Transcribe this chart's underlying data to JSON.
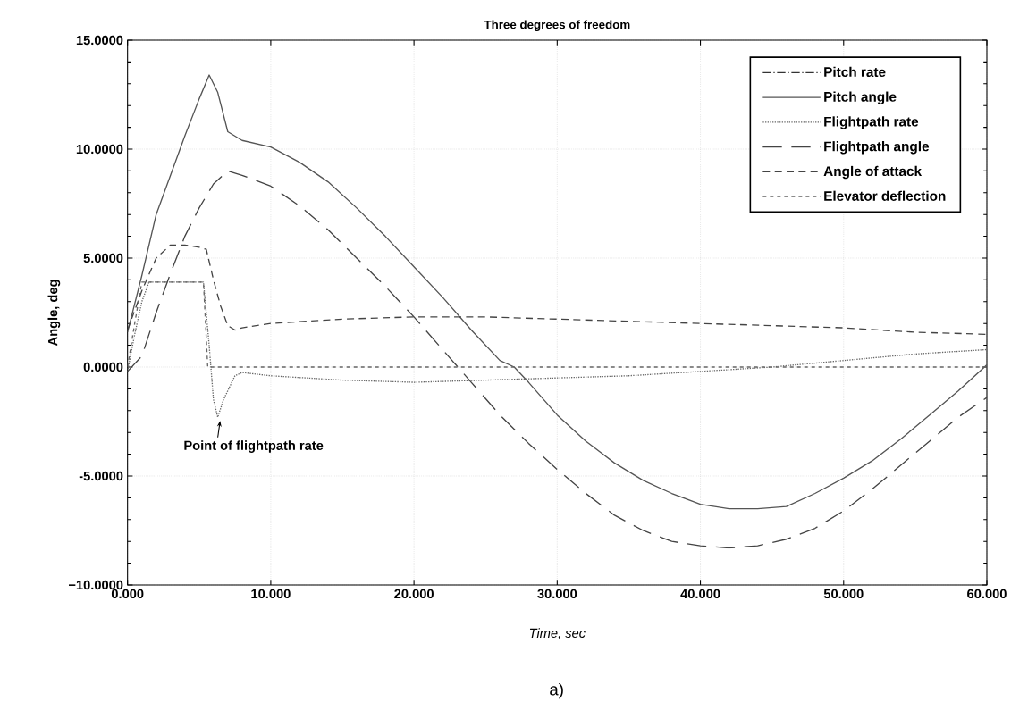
{
  "chart_data": {
    "type": "line",
    "title": "Three degrees of freedom",
    "xlabel": "Time, sec",
    "ylabel": "Angle, deg",
    "xlim": [
      0,
      60
    ],
    "ylim": [
      -10,
      15
    ],
    "xticks": [
      {
        "value": 0,
        "label": "0.000"
      },
      {
        "value": 10,
        "label": "10.000"
      },
      {
        "value": 20,
        "label": "20.000"
      },
      {
        "value": 30,
        "label": "30.000"
      },
      {
        "value": 40,
        "label": "40.000"
      },
      {
        "value": 50,
        "label": "50.000"
      },
      {
        "value": 60,
        "label": "60.000"
      }
    ],
    "yticks": [
      {
        "value": -10,
        "label": "−10.0000"
      },
      {
        "value": -5,
        "label": "-5.0000"
      },
      {
        "value": 0,
        "label": "0.0000"
      },
      {
        "value": 5,
        "label": "5.0000"
      },
      {
        "value": 10,
        "label": "10.0000"
      },
      {
        "value": 15,
        "label": "15.0000"
      }
    ],
    "grid": true,
    "legend": "top right",
    "series": [
      {
        "name": "Pitch rate",
        "color": "#333333",
        "line_style": "dashdot"
      },
      {
        "name": "Pitch angle",
        "color": "#555555",
        "line_style": "solid",
        "x": [
          0,
          1,
          2,
          3,
          4,
          5,
          5.7,
          6.3,
          7,
          8,
          10,
          12,
          14,
          16,
          18,
          20,
          22,
          24,
          26,
          27,
          28,
          30,
          32,
          34,
          36,
          38,
          40,
          42,
          44,
          46,
          48,
          50,
          52,
          54,
          56,
          58,
          60
        ],
        "values": [
          1.6,
          4.2,
          7,
          8.8,
          10.6,
          12.3,
          13.4,
          12.6,
          10.8,
          10.4,
          10.1,
          9.4,
          8.5,
          7.3,
          6,
          4.6,
          3.2,
          1.7,
          0.3,
          0,
          -0.7,
          -2.2,
          -3.4,
          -4.4,
          -5.2,
          -5.8,
          -6.3,
          -6.5,
          -6.5,
          -6.4,
          -5.8,
          -5.1,
          -4.3,
          -3.3,
          -2.2,
          -1.1,
          0.1
        ]
      },
      {
        "name": "Flightpath rate",
        "color": "#666666",
        "line_style": "dotted",
        "x": [
          0,
          0.5,
          1,
          1.5,
          5.3,
          5.7,
          6,
          6.3,
          6.7,
          7.5,
          8,
          10,
          15,
          20,
          25,
          30,
          35,
          40,
          45,
          50,
          55,
          60
        ],
        "values": [
          -0.2,
          1.5,
          3,
          3.9,
          3.9,
          1,
          -1.5,
          -2.3,
          -1.5,
          -0.4,
          -0.25,
          -0.4,
          -0.6,
          -0.7,
          -0.6,
          -0.5,
          -0.4,
          -0.2,
          0,
          0.3,
          0.6,
          0.8
        ]
      },
      {
        "name": "Flightpath angle",
        "color": "#444444",
        "line_style": "longdash",
        "x": [
          0,
          1,
          2,
          3,
          4,
          5,
          6,
          7,
          8,
          10,
          12,
          14,
          16,
          18,
          20,
          22,
          24,
          26,
          28,
          30,
          32,
          34,
          36,
          38,
          40,
          42,
          44,
          46,
          48,
          50,
          52,
          54,
          56,
          58,
          60
        ],
        "values": [
          -0.2,
          0.5,
          2.5,
          4.3,
          6,
          7.3,
          8.4,
          9,
          8.8,
          8.3,
          7.4,
          6.3,
          5,
          3.7,
          2.3,
          0.8,
          -0.7,
          -2.2,
          -3.5,
          -4.7,
          -5.8,
          -6.8,
          -7.5,
          -8,
          -8.2,
          -8.3,
          -8.2,
          -7.9,
          -7.4,
          -6.6,
          -5.6,
          -4.5,
          -3.4,
          -2.3,
          -1.4
        ]
      },
      {
        "name": "Angle of attack",
        "color": "#444444",
        "line_style": "dashed",
        "x": [
          0,
          1,
          2,
          3,
          4,
          5,
          5.5,
          6,
          6.5,
          7,
          7.5,
          8,
          10,
          15,
          20,
          25,
          30,
          35,
          40,
          45,
          50,
          55,
          60
        ],
        "values": [
          1.7,
          3.5,
          5,
          5.6,
          5.6,
          5.5,
          5.4,
          4,
          2.8,
          1.9,
          1.7,
          1.8,
          2,
          2.2,
          2.3,
          2.3,
          2.2,
          2.1,
          2,
          1.9,
          1.8,
          1.6,
          1.5
        ]
      },
      {
        "name": "Elevator deflection",
        "color": "#666666",
        "line_style": "shortdash",
        "x": [
          0,
          0.5,
          1,
          5.3,
          5.6,
          60
        ],
        "values": [
          0,
          2,
          3.9,
          3.9,
          0,
          0
        ]
      }
    ],
    "annotations": [
      {
        "text": "Point of flightpath rate",
        "x": 6.3,
        "y": -2.3
      },
      "a)"
    ]
  }
}
